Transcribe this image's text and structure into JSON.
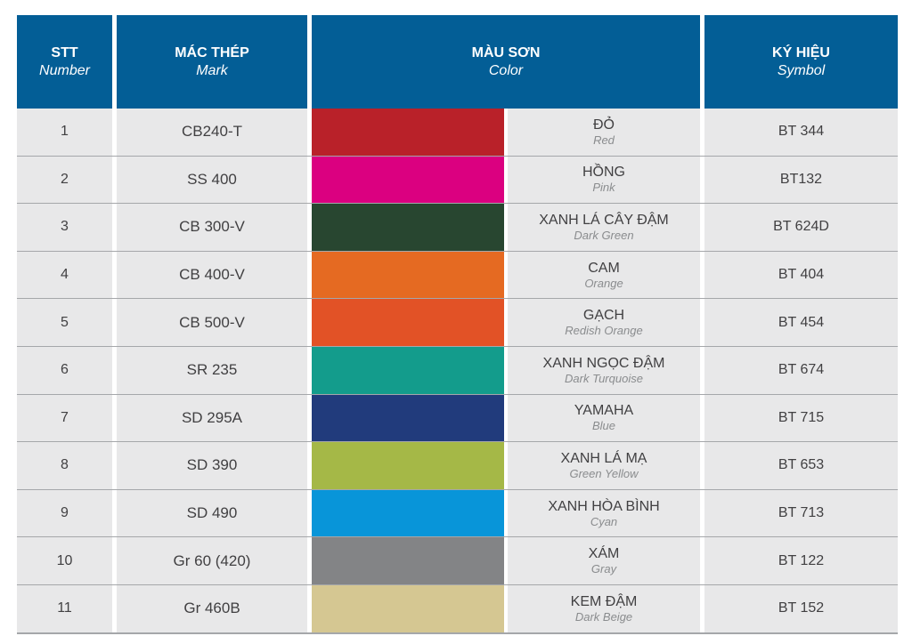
{
  "header": {
    "stt": {
      "vn": "STT",
      "en": "Number"
    },
    "mark": {
      "vn": "MÁC THÉP",
      "en": "Mark"
    },
    "color": {
      "vn": "MÀU SƠN",
      "en": "Color"
    },
    "symbol": {
      "vn": "KÝ HIỆU",
      "en": "Symbol"
    }
  },
  "rows": [
    {
      "stt": "1",
      "mark": "CB240-T",
      "swatch": "#b92129",
      "color_vn": "ĐỎ",
      "color_en": "Red",
      "symbol": "BT 344"
    },
    {
      "stt": "2",
      "mark": "SS 400",
      "swatch": "#db0080",
      "color_vn": "HỒNG",
      "color_en": "Pink",
      "symbol": "BT132"
    },
    {
      "stt": "3",
      "mark": "CB 300-V",
      "swatch": "#284630",
      "color_vn": "XANH LÁ CÂY ĐẬM",
      "color_en": "Dark Green",
      "symbol": "BT 624D"
    },
    {
      "stt": "4",
      "mark": "CB 400-V",
      "swatch": "#e56a22",
      "color_vn": "CAM",
      "color_en": "Orange",
      "symbol": "BT 404"
    },
    {
      "stt": "5",
      "mark": "CB 500-V",
      "swatch": "#e25226",
      "color_vn": "GẠCH",
      "color_en": "Redish Orange",
      "symbol": "BT 454"
    },
    {
      "stt": "6",
      "mark": "SR 235",
      "swatch": "#139c8c",
      "color_vn": "XANH NGỌC ĐẬM",
      "color_en": "Dark Turquoise",
      "symbol": "BT 674"
    },
    {
      "stt": "7",
      "mark": "SD 295A",
      "swatch": "#213b7c",
      "color_vn": "YAMAHA",
      "color_en": "Blue",
      "symbol": "BT 715"
    },
    {
      "stt": "8",
      "mark": "SD 390",
      "swatch": "#a5b847",
      "color_vn": "XANH LÁ MẠ",
      "color_en": "Green Yellow",
      "symbol": "BT 653"
    },
    {
      "stt": "9",
      "mark": "SD 490",
      "swatch": "#0895d9",
      "color_vn": "XANH HÒA BÌNH",
      "color_en": "Cyan",
      "symbol": "BT 713"
    },
    {
      "stt": "10",
      "mark": "Gr 60 (420)",
      "swatch": "#838486",
      "color_vn": "XÁM",
      "color_en": "Gray",
      "symbol": "BT 122"
    },
    {
      "stt": "11",
      "mark": "Gr 460B",
      "swatch": "#d5c792",
      "color_vn": "KEM ĐẬM",
      "color_en": "Dark Beige",
      "symbol": "BT 152"
    }
  ]
}
